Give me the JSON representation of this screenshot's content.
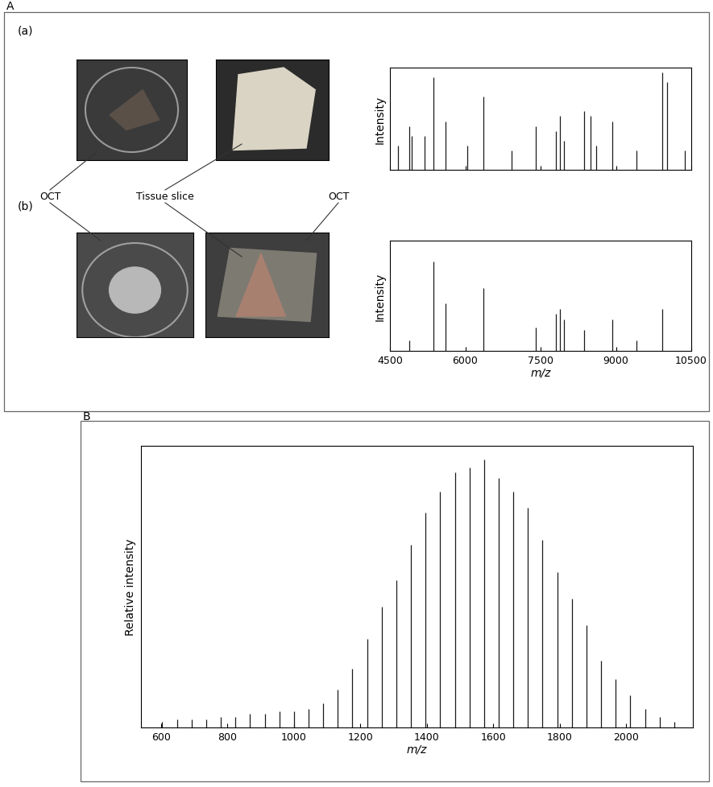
{
  "panels": [
    {
      "label": "A",
      "rows": [
        "(a)",
        "(b)"
      ],
      "callouts": [
        "OCT",
        "Tissue slice",
        "OCT"
      ]
    },
    {
      "label": "B"
    }
  ],
  "chart_data": [
    {
      "type": "stem",
      "y_label": "Intensity",
      "color": "#1a1a1a",
      "tick_labels": false,
      "x": [
        4660,
        4885,
        4930,
        5190,
        5370,
        5610,
        6040,
        6360,
        6920,
        7400,
        7800,
        7880,
        7960,
        8360,
        8490,
        8600,
        8930,
        9410,
        9920,
        10020,
        10370
      ],
      "values": [
        25,
        45,
        35,
        35,
        95,
        50,
        25,
        75,
        20,
        45,
        40,
        55,
        30,
        60,
        55,
        25,
        50,
        20,
        100,
        90,
        20
      ],
      "xlim": [
        4500,
        10500
      ],
      "xticks": [
        4500,
        6000,
        7500,
        9000,
        10500
      ],
      "ylim": [
        0,
        105
      ]
    },
    {
      "type": "stem",
      "y_label": "Intensity",
      "x_label": "m/z",
      "color": "#1a1a1a",
      "tick_labels": "x",
      "x": [
        4885,
        5370,
        5610,
        6360,
        7400,
        7800,
        7880,
        7960,
        8360,
        8930,
        9410,
        9920
      ],
      "values": [
        10,
        85,
        45,
        60,
        22,
        35,
        40,
        30,
        20,
        30,
        10,
        40
      ],
      "xlim": [
        4500,
        10500
      ],
      "xticks": [
        4500,
        6000,
        7500,
        9000,
        10500
      ],
      "ylim": [
        0,
        105
      ]
    },
    {
      "type": "stem",
      "y_label": "Relative intensity",
      "x_label": "m/z",
      "color": "#1a1a1a",
      "tick_labels": "x",
      "x": [
        604,
        648,
        692,
        736,
        780,
        824,
        868,
        912,
        956,
        1000,
        1044,
        1088,
        1132,
        1176,
        1220,
        1264,
        1308,
        1352,
        1396,
        1440,
        1484,
        1528,
        1572,
        1616,
        1660,
        1704,
        1748,
        1792,
        1836,
        1880,
        1924,
        1968,
        2012,
        2056,
        2100,
        2144
      ],
      "values": [
        2,
        3,
        3,
        3,
        4,
        4,
        5,
        5,
        6,
        6,
        7,
        9,
        14,
        22,
        33,
        45,
        55,
        68,
        80,
        88,
        95,
        97,
        100,
        93,
        88,
        82,
        70,
        58,
        48,
        38,
        25,
        18,
        12,
        7,
        4,
        2
      ],
      "xlim": [
        540,
        2200
      ],
      "xticks": [
        600,
        800,
        1000,
        1200,
        1400,
        1600,
        1800,
        2000
      ],
      "ylim": [
        0,
        105
      ]
    }
  ]
}
